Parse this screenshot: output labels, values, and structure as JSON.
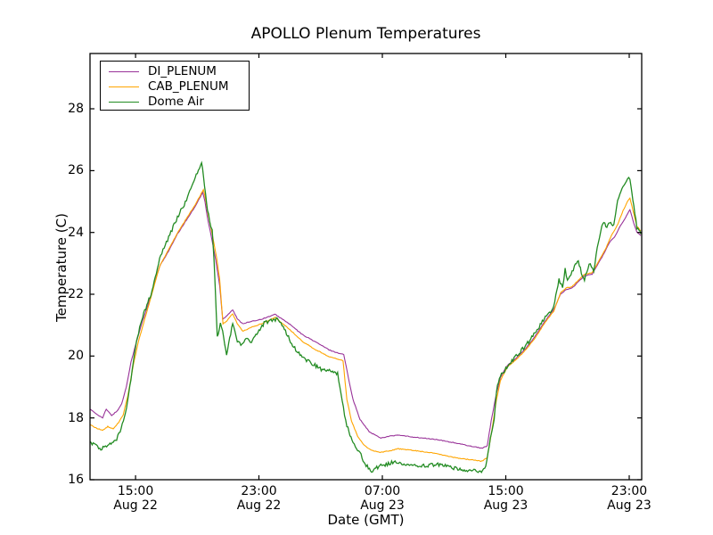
{
  "figure": {
    "background": "#ffffff",
    "frame_color": "#000000"
  },
  "chart_data": {
    "type": "line",
    "title": "APOLLO Plenum Temperatures",
    "xlabel": "Date (GMT)",
    "ylabel": "Temperature (C)",
    "x_unit_note": "t = hours after Aug 22 12:00 GMT",
    "xlim": [
      0.05,
      35.81
    ],
    "ylim": [
      16,
      29.79
    ],
    "grid": false,
    "legend_position": "upper left",
    "yticks": [
      {
        "value": 16,
        "label": "16"
      },
      {
        "value": 18,
        "label": "18"
      },
      {
        "value": 20,
        "label": "20"
      },
      {
        "value": 22,
        "label": "22"
      },
      {
        "value": 24,
        "label": "24"
      },
      {
        "value": 26,
        "label": "26"
      },
      {
        "value": 28,
        "label": "28"
      }
    ],
    "xticks": [
      {
        "value": 3,
        "time": "15:00",
        "date": "Aug 22"
      },
      {
        "value": 11,
        "time": "23:00",
        "date": "Aug 22"
      },
      {
        "value": 19,
        "time": "07:00",
        "date": "Aug 23"
      },
      {
        "value": 27,
        "time": "15:00",
        "date": "Aug 23"
      },
      {
        "value": 35,
        "time": "23:00",
        "date": "Aug 23"
      }
    ],
    "series": [
      {
        "name": "DI_PLENUM",
        "color": "#993399",
        "noise": 0.012,
        "points": [
          [
            0.05,
            18.28
          ],
          [
            0.4,
            18.15
          ],
          [
            0.87,
            18.0
          ],
          [
            1.1,
            18.28
          ],
          [
            1.45,
            18.08
          ],
          [
            1.8,
            18.22
          ],
          [
            2.1,
            18.45
          ],
          [
            2.4,
            19.0
          ],
          [
            2.7,
            19.8
          ],
          [
            3.0,
            20.35
          ],
          [
            3.4,
            21.05
          ],
          [
            3.9,
            21.8
          ],
          [
            4.56,
            22.9
          ],
          [
            5.2,
            23.45
          ],
          [
            5.72,
            23.95
          ],
          [
            6.3,
            24.4
          ],
          [
            6.87,
            24.85
          ],
          [
            7.2,
            25.15
          ],
          [
            7.35,
            25.3
          ],
          [
            7.5,
            25.0
          ],
          [
            7.65,
            24.5
          ],
          [
            7.9,
            23.9
          ],
          [
            8.2,
            23.1
          ],
          [
            8.45,
            22.3
          ],
          [
            8.65,
            21.2
          ],
          [
            8.8,
            21.25
          ],
          [
            9.3,
            21.5
          ],
          [
            9.6,
            21.2
          ],
          [
            9.95,
            21.05
          ],
          [
            10.35,
            21.1
          ],
          [
            11.2,
            21.2
          ],
          [
            12.05,
            21.35
          ],
          [
            12.95,
            21.05
          ],
          [
            13.8,
            20.7
          ],
          [
            14.7,
            20.45
          ],
          [
            15.55,
            20.2
          ],
          [
            16.0,
            20.12
          ],
          [
            16.5,
            20.05
          ],
          [
            16.8,
            19.3
          ],
          [
            17.1,
            18.6
          ],
          [
            17.55,
            17.95
          ],
          [
            18.15,
            17.55
          ],
          [
            18.9,
            17.35
          ],
          [
            19.6,
            17.42
          ],
          [
            20.05,
            17.44
          ],
          [
            21.0,
            17.38
          ],
          [
            22.5,
            17.3
          ],
          [
            23.6,
            17.2
          ],
          [
            24.8,
            17.08
          ],
          [
            25.5,
            17.02
          ],
          [
            25.8,
            17.1
          ],
          [
            26.05,
            17.9
          ],
          [
            26.4,
            18.8
          ],
          [
            26.65,
            19.3
          ],
          [
            27.1,
            19.7
          ],
          [
            27.7,
            19.95
          ],
          [
            28.3,
            20.25
          ],
          [
            28.85,
            20.6
          ],
          [
            29.5,
            21.1
          ],
          [
            30.1,
            21.5
          ],
          [
            30.55,
            22.0
          ],
          [
            30.9,
            22.15
          ],
          [
            31.3,
            22.2
          ],
          [
            31.7,
            22.4
          ],
          [
            32.1,
            22.6
          ],
          [
            32.6,
            22.65
          ],
          [
            33.0,
            23.0
          ],
          [
            33.45,
            23.4
          ],
          [
            33.75,
            23.7
          ],
          [
            34.05,
            23.85
          ],
          [
            34.3,
            24.1
          ],
          [
            34.6,
            24.35
          ],
          [
            34.9,
            24.6
          ],
          [
            35.05,
            24.74
          ],
          [
            35.3,
            24.3
          ],
          [
            35.5,
            24.0
          ],
          [
            35.75,
            23.9
          ]
        ]
      },
      {
        "name": "CAB_PLENUM",
        "color": "#ffa500",
        "noise": 0.012,
        "points": [
          [
            0.05,
            17.78
          ],
          [
            0.5,
            17.66
          ],
          [
            0.87,
            17.6
          ],
          [
            1.2,
            17.72
          ],
          [
            1.55,
            17.64
          ],
          [
            1.9,
            17.85
          ],
          [
            2.2,
            18.1
          ],
          [
            2.5,
            18.7
          ],
          [
            2.85,
            19.7
          ],
          [
            3.15,
            20.4
          ],
          [
            3.6,
            21.2
          ],
          [
            4.0,
            21.9
          ],
          [
            4.56,
            22.9
          ],
          [
            5.2,
            23.5
          ],
          [
            5.72,
            23.98
          ],
          [
            6.3,
            24.45
          ],
          [
            6.87,
            24.9
          ],
          [
            7.2,
            25.2
          ],
          [
            7.4,
            25.38
          ],
          [
            7.55,
            25.05
          ],
          [
            7.7,
            24.6
          ],
          [
            7.95,
            24.0
          ],
          [
            8.25,
            23.2
          ],
          [
            8.45,
            22.5
          ],
          [
            8.67,
            21.05
          ],
          [
            8.85,
            21.1
          ],
          [
            9.3,
            21.37
          ],
          [
            9.6,
            21.05
          ],
          [
            9.95,
            20.8
          ],
          [
            10.45,
            20.92
          ],
          [
            11.2,
            21.05
          ],
          [
            12.05,
            21.25
          ],
          [
            12.95,
            20.88
          ],
          [
            13.8,
            20.48
          ],
          [
            14.7,
            20.2
          ],
          [
            15.55,
            19.98
          ],
          [
            16.1,
            19.9
          ],
          [
            16.45,
            19.85
          ],
          [
            16.7,
            18.6
          ],
          [
            17.0,
            17.9
          ],
          [
            17.4,
            17.4
          ],
          [
            17.85,
            17.1
          ],
          [
            18.3,
            16.95
          ],
          [
            18.85,
            16.88
          ],
          [
            19.6,
            16.95
          ],
          [
            20.05,
            17.0
          ],
          [
            21.0,
            16.95
          ],
          [
            22.5,
            16.85
          ],
          [
            23.6,
            16.72
          ],
          [
            24.8,
            16.64
          ],
          [
            25.45,
            16.6
          ],
          [
            25.8,
            16.72
          ],
          [
            26.1,
            17.6
          ],
          [
            26.4,
            18.6
          ],
          [
            26.65,
            19.2
          ],
          [
            27.1,
            19.65
          ],
          [
            27.7,
            19.9
          ],
          [
            28.3,
            20.2
          ],
          [
            28.85,
            20.55
          ],
          [
            29.5,
            21.05
          ],
          [
            30.1,
            21.45
          ],
          [
            30.55,
            22.05
          ],
          [
            30.9,
            22.2
          ],
          [
            31.3,
            22.25
          ],
          [
            31.7,
            22.45
          ],
          [
            32.1,
            22.65
          ],
          [
            32.6,
            22.7
          ],
          [
            33.0,
            23.05
          ],
          [
            33.45,
            23.45
          ],
          [
            33.85,
            23.9
          ],
          [
            34.2,
            24.2
          ],
          [
            34.6,
            24.7
          ],
          [
            34.9,
            25.0
          ],
          [
            35.05,
            25.12
          ],
          [
            35.3,
            24.6
          ],
          [
            35.5,
            24.2
          ],
          [
            35.75,
            24.05
          ]
        ]
      },
      {
        "name": "Dome Air",
        "color": "#228b22",
        "noise": 0.06,
        "points": [
          [
            0.05,
            17.2
          ],
          [
            0.4,
            17.1
          ],
          [
            0.82,
            17.0
          ],
          [
            1.2,
            17.1
          ],
          [
            1.7,
            17.25
          ],
          [
            2.0,
            17.55
          ],
          [
            2.35,
            18.15
          ],
          [
            2.7,
            19.2
          ],
          [
            3.0,
            20.3
          ],
          [
            3.4,
            21.2
          ],
          [
            4.0,
            22.0
          ],
          [
            4.56,
            23.15
          ],
          [
            5.15,
            23.85
          ],
          [
            5.72,
            24.5
          ],
          [
            6.3,
            25.05
          ],
          [
            6.87,
            25.8
          ],
          [
            7.28,
            26.28
          ],
          [
            7.6,
            24.95
          ],
          [
            7.8,
            24.35
          ],
          [
            7.97,
            24.05
          ],
          [
            8.1,
            23.0
          ],
          [
            8.3,
            20.6
          ],
          [
            8.5,
            21.1
          ],
          [
            8.72,
            20.6
          ],
          [
            8.9,
            20.05
          ],
          [
            9.3,
            21.05
          ],
          [
            9.6,
            20.5
          ],
          [
            9.9,
            20.35
          ],
          [
            10.15,
            20.6
          ],
          [
            10.45,
            20.45
          ],
          [
            10.8,
            20.7
          ],
          [
            11.4,
            21.1
          ],
          [
            11.85,
            21.15
          ],
          [
            12.2,
            21.2
          ],
          [
            12.65,
            20.85
          ],
          [
            13.25,
            20.3
          ],
          [
            13.8,
            19.95
          ],
          [
            14.5,
            19.75
          ],
          [
            15.1,
            19.55
          ],
          [
            15.7,
            19.5
          ],
          [
            16.1,
            19.45
          ],
          [
            16.4,
            18.5
          ],
          [
            16.7,
            17.75
          ],
          [
            17.1,
            17.2
          ],
          [
            17.55,
            16.85
          ],
          [
            17.95,
            16.45
          ],
          [
            18.3,
            16.3
          ],
          [
            18.9,
            16.45
          ],
          [
            19.6,
            16.55
          ],
          [
            20.05,
            16.55
          ],
          [
            20.75,
            16.5
          ],
          [
            21.6,
            16.45
          ],
          [
            22.6,
            16.5
          ],
          [
            23.35,
            16.4
          ],
          [
            24.1,
            16.32
          ],
          [
            24.8,
            16.3
          ],
          [
            25.35,
            16.25
          ],
          [
            25.7,
            16.45
          ],
          [
            26.0,
            17.3
          ],
          [
            26.25,
            17.95
          ],
          [
            26.4,
            18.9
          ],
          [
            26.65,
            19.35
          ],
          [
            27.0,
            19.6
          ],
          [
            27.4,
            19.85
          ],
          [
            27.95,
            20.15
          ],
          [
            28.55,
            20.5
          ],
          [
            29.1,
            20.9
          ],
          [
            29.7,
            21.35
          ],
          [
            30.1,
            21.55
          ],
          [
            30.45,
            22.5
          ],
          [
            30.68,
            22.2
          ],
          [
            30.85,
            22.8
          ],
          [
            31.0,
            22.4
          ],
          [
            31.45,
            22.9
          ],
          [
            31.7,
            23.05
          ],
          [
            31.9,
            22.7
          ],
          [
            32.1,
            22.5
          ],
          [
            32.4,
            23.0
          ],
          [
            32.7,
            22.75
          ],
          [
            33.0,
            23.7
          ],
          [
            33.3,
            24.35
          ],
          [
            33.55,
            24.2
          ],
          [
            33.8,
            24.35
          ],
          [
            34.0,
            24.2
          ],
          [
            34.25,
            25.0
          ],
          [
            34.6,
            25.45
          ],
          [
            34.9,
            25.75
          ],
          [
            35.05,
            25.7
          ],
          [
            35.3,
            24.9
          ],
          [
            35.5,
            24.15
          ],
          [
            35.75,
            23.95
          ]
        ]
      }
    ]
  }
}
